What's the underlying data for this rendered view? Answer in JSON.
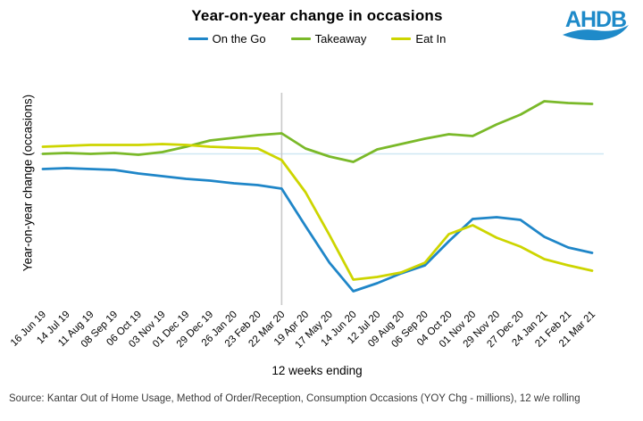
{
  "title": "Year-on-year change in occasions",
  "logo_text": "AHDB",
  "colors": {
    "logo_blue": "#1E8AC9",
    "zero_line": "#CFE7F3",
    "event_line": "#C9C9C9",
    "source_text": "#3A3A3A"
  },
  "source": "Source: Kantar Out of Home Usage, Method of Order/Reception, Consumption Occasions (YOY Chg - millions), 12 w/e rolling",
  "chart_data": {
    "type": "line",
    "title": "Year-on-year change in occasions",
    "xlabel": "12 weeks ending",
    "ylabel": "Year-on-year change (occasions)",
    "legend_position": "top",
    "grid": "horizontal zero line only (light blue)",
    "y_tick_labels": [],
    "ylim": [
      -160,
      65
    ],
    "vertical_line_at": "22 Mar 20",
    "x_categories": [
      "16 Jun 19",
      "14 Jul 19",
      "11 Aug 19",
      "08 Sep 19",
      "06 Oct 19",
      "03 Nov 19",
      "01 Dec 19",
      "29 Dec 19",
      "26 Jan 20",
      "23 Feb 20",
      "22 Mar 20",
      "19 Apr 20",
      "17 May 20",
      "14 Jun 20",
      "12 Jul 20",
      "09 Aug 20",
      "06 Sep 20",
      "04 Oct 20",
      "01 Nov 20",
      "29 Nov 20",
      "27 Dec 20",
      "24 Jan 21",
      "21 Feb 21",
      "21 Mar 21"
    ],
    "series": [
      {
        "name": "On the Go",
        "color": "#1F86C8",
        "values": [
          -17,
          -16,
          -17,
          -18,
          -22,
          -25,
          -28,
          -30,
          -33,
          -35,
          -39,
          -81,
          -122,
          -154,
          -145,
          -134,
          -125,
          -98,
          -73,
          -71,
          -74,
          -93,
          -105,
          -111
        ]
      },
      {
        "name": "Takeaway",
        "color": "#7AB929",
        "values": [
          0,
          1,
          0,
          1,
          -1,
          2,
          8,
          15,
          18,
          21,
          23,
          6,
          -3,
          -9,
          5,
          11,
          17,
          22,
          20,
          33,
          44,
          59,
          57,
          56
        ]
      },
      {
        "name": "Eat In",
        "color": "#CDD500",
        "values": [
          8,
          9,
          10,
          10,
          10,
          11,
          10,
          8,
          7,
          6,
          -7,
          -43,
          -91,
          -141,
          -138,
          -133,
          -122,
          -90,
          -80,
          -94,
          -104,
          -118,
          -125,
          -131
        ]
      }
    ]
  }
}
